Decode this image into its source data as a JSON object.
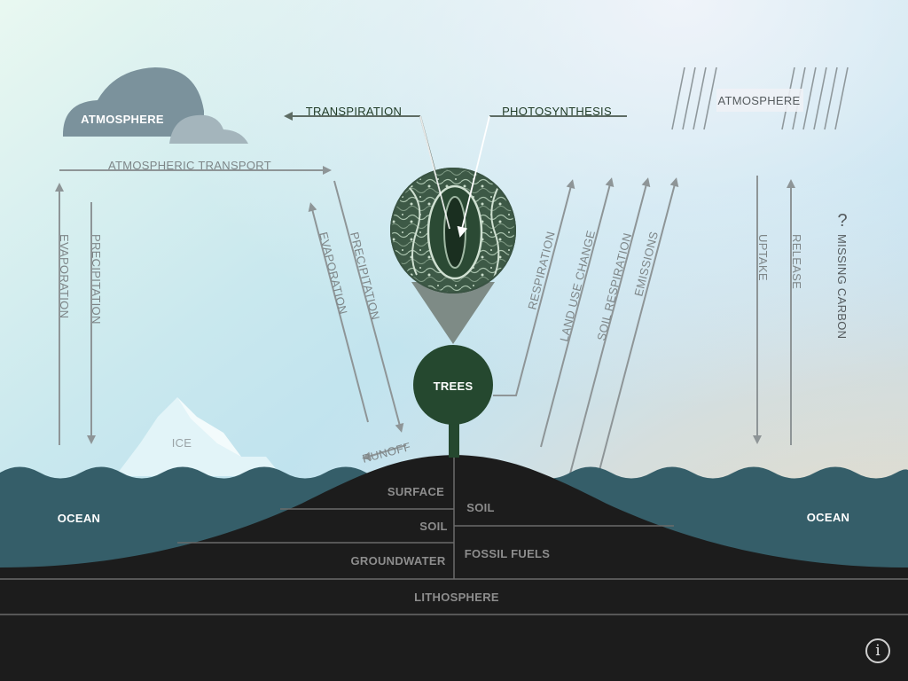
{
  "labels": {
    "atmosphere_cloud": "ATMOSPHERE",
    "atmosphere_rain": "ATMOSPHERE",
    "transpiration": "TRANSPIRATION",
    "photosynthesis": "PHOTOSYNTHESIS",
    "atmospheric_transport": "ATMOSPHERIC TRANSPORT",
    "evaporation_left": "EVAPORATION",
    "precipitation_left": "PRECIPITATION",
    "evaporation_center": "EVAPORATION",
    "precipitation_center": "PRECIPITATION",
    "respiration": "RESPIRATION",
    "land_use_change": "LAND USE CHANGE",
    "soil_respiration": "SOIL RESPIRATION",
    "emissions": "EMISSIONS",
    "uptake": "UPTAKE",
    "release": "RELEASE",
    "missing_carbon": "MISSING CARBON",
    "missing_carbon_mark": "?",
    "trees": "TREES",
    "ice": "ICE",
    "runoff": "RUNOFF",
    "ocean_left": "OCEAN",
    "ocean_right": "OCEAN",
    "surface": "SURFACE",
    "soil_left": "SOIL",
    "groundwater": "GROUNDWATER",
    "soil_right": "SOIL",
    "fossil_fuels": "FOSSIL FUELS",
    "lithosphere": "LITHOSPHERE"
  },
  "info_button": {
    "glyph": "i"
  },
  "icons": {
    "info": "info-icon",
    "cloud": "cloud-icon",
    "rain": "rain-icon",
    "iceberg": "iceberg-icon",
    "tree": "tree-icon",
    "stomata": "stomata-icon"
  },
  "colors": {
    "ocean": "#355e69",
    "land": "#1c1c1c",
    "tree": "#25482f",
    "cloud": "#7b929c",
    "arrow": "#8e9597",
    "ice": "#e2f4f8"
  }
}
